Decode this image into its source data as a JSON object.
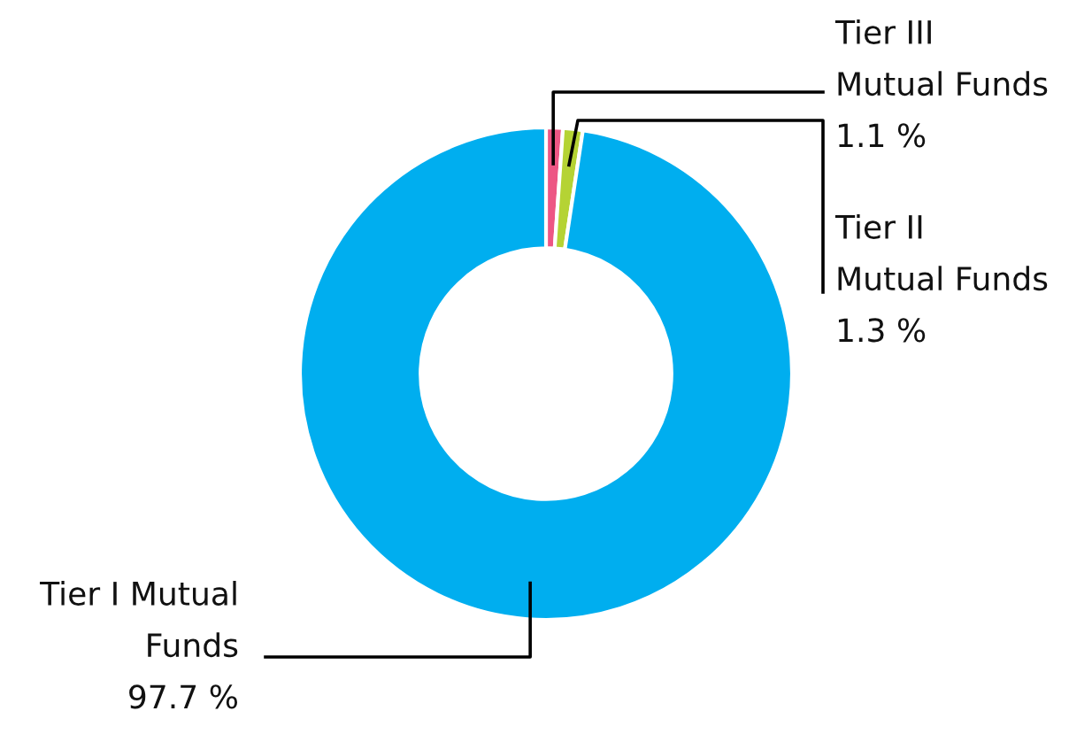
{
  "chart_data": {
    "type": "donut",
    "categories": [
      "Tier III\nMutual Funds",
      "Tier II\nMutual Funds",
      "Tier I Mutual\nFunds"
    ],
    "values": [
      1.1,
      1.3,
      97.7
    ],
    "colors": [
      "#ed5684",
      "#b5d334",
      "#00aeef"
    ],
    "value_labels": [
      "1.1 %",
      "1.3 %",
      "97.7 %"
    ],
    "legend": false
  }
}
